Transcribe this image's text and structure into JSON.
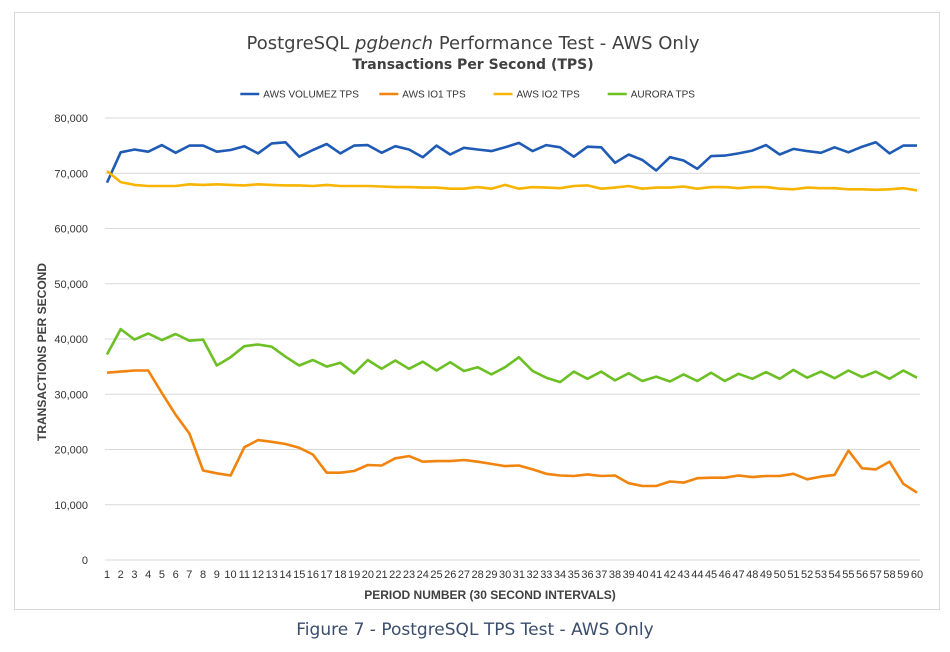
{
  "chart_data": {
    "type": "line",
    "title_prefix": "PostgreSQL ",
    "title_italic": "pgbench",
    "title_suffix": " Performance Test - AWS Only",
    "subtitle": "Transactions Per Second (TPS)",
    "xlabel": "PERIOD NUMBER (30 SECOND INTERVALS)",
    "ylabel": "TRANSACTIONS PER SECOND",
    "ylim": [
      0,
      80000
    ],
    "yticks": [
      "0",
      "10,000",
      "20,000",
      "30,000",
      "40,000",
      "50,000",
      "60,000",
      "70,000",
      "80,000"
    ],
    "grid": "horizontal",
    "legend_position": "top",
    "x": [
      1,
      2,
      3,
      4,
      5,
      6,
      7,
      8,
      9,
      10,
      11,
      12,
      13,
      14,
      15,
      16,
      17,
      18,
      19,
      20,
      21,
      22,
      23,
      24,
      25,
      26,
      27,
      28,
      29,
      30,
      31,
      32,
      33,
      34,
      35,
      36,
      37,
      38,
      39,
      40,
      41,
      42,
      43,
      44,
      45,
      46,
      47,
      48,
      49,
      50,
      51,
      52,
      53,
      54,
      55,
      56,
      57,
      58,
      59,
      60
    ],
    "series": [
      {
        "name": "AWS VOLUMEZ TPS",
        "color": "#1f5bb4",
        "values": [
          68300,
          73800,
          74300,
          73900,
          75100,
          73700,
          75000,
          75000,
          73900,
          74200,
          74900,
          73600,
          75400,
          75600,
          73000,
          74200,
          75300,
          73600,
          75000,
          75100,
          73700,
          74900,
          74300,
          72900,
          75000,
          73400,
          74600,
          74300,
          74000,
          74700,
          75500,
          74000,
          75100,
          74700,
          73000,
          74800,
          74700,
          71900,
          73400,
          72400,
          70500,
          72900,
          72300,
          70800,
          73100,
          73200,
          73600,
          74100,
          75100,
          73400,
          74400,
          74000,
          73700,
          74700,
          73800,
          74800,
          75600,
          73600,
          75000,
          75000
        ]
      },
      {
        "name": "AWS IO1 TPS",
        "color": "#f0840e",
        "values": [
          33900,
          34100,
          34300,
          34300,
          30200,
          26300,
          22900,
          16200,
          15700,
          15300,
          20400,
          21700,
          21400,
          21000,
          20300,
          19100,
          15800,
          15800,
          16100,
          17200,
          17100,
          18400,
          18800,
          17800,
          17900,
          17900,
          18100,
          17800,
          17400,
          17000,
          17100,
          16400,
          15600,
          15300,
          15200,
          15500,
          15200,
          15300,
          13900,
          13400,
          13400,
          14200,
          14000,
          14800,
          14900,
          14900,
          15300,
          15000,
          15200,
          15200,
          15600,
          14600,
          15100,
          15400,
          19800,
          16600,
          16400,
          17800,
          13800,
          12200
        ]
      },
      {
        "name": "AWS IO2 TPS",
        "color": "#f7b400",
        "values": [
          70400,
          68400,
          67900,
          67700,
          67700,
          67700,
          68000,
          67900,
          68000,
          67900,
          67800,
          68000,
          67900,
          67800,
          67800,
          67700,
          67900,
          67700,
          67700,
          67700,
          67600,
          67500,
          67500,
          67400,
          67400,
          67200,
          67200,
          67500,
          67200,
          67900,
          67200,
          67500,
          67400,
          67300,
          67700,
          67800,
          67200,
          67400,
          67700,
          67200,
          67400,
          67400,
          67600,
          67200,
          67500,
          67500,
          67300,
          67500,
          67500,
          67200,
          67100,
          67400,
          67300,
          67300,
          67100,
          67100,
          67000,
          67100,
          67300,
          66900
        ]
      },
      {
        "name": "AURORA TPS",
        "color": "#6cc024",
        "values": [
          37200,
          41800,
          39900,
          41000,
          39800,
          40900,
          39700,
          39900,
          35200,
          36700,
          38700,
          39000,
          38600,
          36800,
          35200,
          36200,
          35000,
          35700,
          33800,
          36200,
          34600,
          36100,
          34600,
          35900,
          34300,
          35800,
          34200,
          34900,
          33600,
          34900,
          36700,
          34200,
          33000,
          32200,
          34100,
          32800,
          34100,
          32500,
          33800,
          32400,
          33200,
          32300,
          33600,
          32400,
          33900,
          32400,
          33700,
          32800,
          34000,
          32800,
          34400,
          33000,
          34100,
          32900,
          34300,
          33100,
          34100,
          32800,
          34300,
          33000
        ]
      }
    ]
  },
  "caption": "Figure 7 - PostgreSQL TPS Test - AWS Only"
}
